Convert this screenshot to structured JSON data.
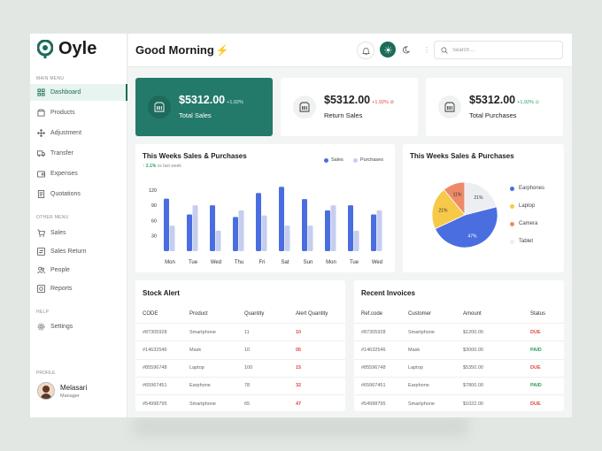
{
  "app": {
    "name": "Oyle",
    "greeting": "Good Morning"
  },
  "colors": {
    "brand": "#1b6b59",
    "sales": "#4a6ee0",
    "purchases": "#c5ceef",
    "red": "#e04848",
    "green": "#2e9e5b"
  },
  "sidebar": {
    "main_menu_label": "MAIN MENU",
    "main_items": [
      {
        "label": "Dashboard",
        "icon": "grid-icon",
        "active": true
      },
      {
        "label": "Products",
        "icon": "box-icon"
      },
      {
        "label": "Adjustment",
        "icon": "move-icon"
      },
      {
        "label": "Transfer",
        "icon": "truck-icon"
      },
      {
        "label": "Expenses",
        "icon": "wallet-icon"
      },
      {
        "label": "Quotations",
        "icon": "document-icon"
      }
    ],
    "other_menu_label": "OTHER MENU",
    "other_items": [
      {
        "label": "Sales",
        "icon": "cart-icon"
      },
      {
        "label": "Sales Return",
        "icon": "return-icon"
      },
      {
        "label": "People",
        "icon": "people-icon"
      },
      {
        "label": "Reports",
        "icon": "report-icon"
      }
    ],
    "help_label": "HELP",
    "help_items": [
      {
        "label": "Settings",
        "icon": "gear-icon"
      }
    ],
    "profile_label": "PROFILE",
    "profile": {
      "name": "Melasari",
      "role": "Manager"
    }
  },
  "search": {
    "placeholder": "Search ..."
  },
  "stats": [
    {
      "value": "$5312.00",
      "change": "+1,92%",
      "label": "Total Sales",
      "trend": "flat"
    },
    {
      "value": "$5312.00",
      "change": "+1,92%",
      "label": "Return Sales",
      "trend": "down"
    },
    {
      "value": "$5312.00",
      "change": "+1,92%",
      "label": "Total Purchases",
      "trend": "up"
    }
  ],
  "weekly_chart": {
    "title": "This Weeks Sales & Purchases",
    "subtitle_value": "2.1%",
    "subtitle_text": "vs last week",
    "legend": [
      "Sales",
      "Purchases"
    ]
  },
  "pie_chart": {
    "title": "This Weeks Sales & Purchases",
    "legend": [
      "Earphones",
      "Laptop",
      "Camera",
      "Tablet"
    ]
  },
  "chart_data": [
    {
      "type": "bar",
      "title": "This Weeks Sales & Purchases",
      "categories": [
        "Mon",
        "Tue",
        "Wed",
        "Thu",
        "Fri",
        "Sat",
        "Sun",
        "Mon",
        "Tue",
        "Wed"
      ],
      "series": [
        {
          "name": "Sales",
          "values": [
            103,
            72,
            90,
            67,
            114,
            126,
            102,
            80,
            90,
            72
          ]
        },
        {
          "name": "Purchases",
          "values": [
            50,
            90,
            40,
            80,
            70,
            50,
            50,
            90,
            40,
            80
          ]
        }
      ],
      "yticks": [
        30,
        60,
        90,
        120
      ],
      "ylim": [
        0,
        130
      ],
      "legend_position": "top-right"
    },
    {
      "type": "pie",
      "title": "This Weeks Sales & Purchases",
      "labels": [
        "Earphones",
        "Laptop",
        "Camera",
        "Tablet"
      ],
      "values": [
        47,
        21,
        11,
        21
      ],
      "value_labels": [
        "47%",
        "21%",
        "11%",
        "21%"
      ],
      "colors": [
        "#4a6ee0",
        "#f7c948",
        "#ee8a6a",
        "#eceef2"
      ]
    }
  ],
  "stock_alert": {
    "title": "Stock Alert",
    "columns": [
      "CODE",
      "Product",
      "Quantity",
      "Alert Quantity"
    ],
    "rows": [
      [
        "#87305928",
        "Smartphone",
        "11",
        "10"
      ],
      [
        "#14632546",
        "Mask",
        "10",
        "05"
      ],
      [
        "#85596748",
        "Laptop",
        "100",
        "15"
      ],
      [
        "#65967451",
        "Earphone",
        "78",
        "32"
      ],
      [
        "#54998795",
        "Smartphone",
        "65",
        "47"
      ]
    ]
  },
  "recent_invoices": {
    "title": "Recent Invoices",
    "columns": [
      "Ref.code",
      "Customer",
      "Amount",
      "Status"
    ],
    "rows": [
      [
        "#87305928",
        "Smartphone",
        "$1200.00",
        "DUE"
      ],
      [
        "#14632546",
        "Mask",
        "$3000.00",
        "PAID"
      ],
      [
        "#85596748",
        "Laptop",
        "$5350.00",
        "DUE"
      ],
      [
        "#65967451",
        "Earphone",
        "$7800.00",
        "PAID"
      ],
      [
        "#54998795",
        "Smartphone",
        "$1022.00",
        "DUE"
      ]
    ]
  }
}
